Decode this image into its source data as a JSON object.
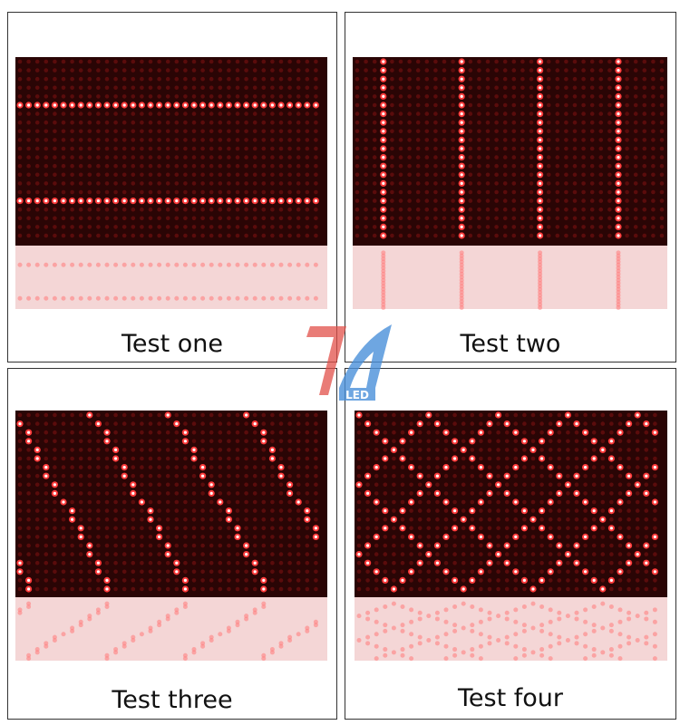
{
  "panels": [
    {
      "label": "Test one",
      "pattern": "horizontal-lines"
    },
    {
      "label": "Test two",
      "pattern": "vertical-lines"
    },
    {
      "label": "Test three",
      "pattern": "diagonal-lines"
    },
    {
      "label": "Test four",
      "pattern": "diamond-grid"
    }
  ],
  "logo": {
    "text": "LED",
    "colors": {
      "red": "#e2504a",
      "blue": "#4a90d9"
    }
  },
  "colors": {
    "led_on": "#ff3b3b",
    "led_off": "#5a0c0c",
    "board": "#2a0505"
  }
}
